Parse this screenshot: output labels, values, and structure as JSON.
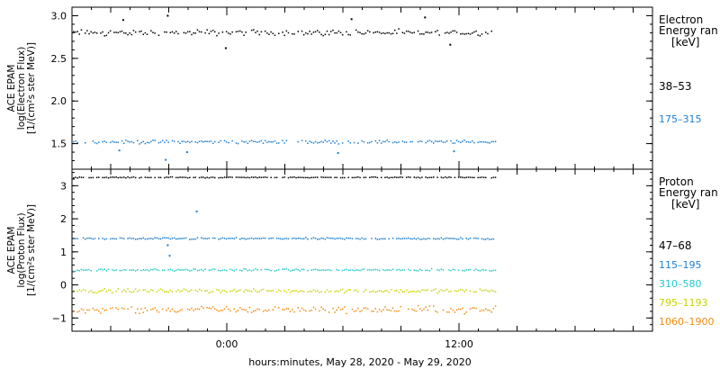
{
  "chart_data": [
    {
      "type": "scatter",
      "panel": "electron",
      "ylabel_lines": [
        "ACE EPAM",
        "log(Electron Flux)",
        "[1/(cm²s ster MeV)]"
      ],
      "ylim": [
        1.2,
        3.1
      ],
      "yticks": [
        1.5,
        2.0,
        2.5,
        3.0
      ],
      "ytick_labels": [
        "1.5",
        "2.0",
        "2.5",
        "3.0"
      ],
      "legend_title": [
        "Electron",
        "Energy ran",
        "[keV]"
      ],
      "series": [
        {
          "name": "38-53",
          "color": "#000000",
          "level": 2.8,
          "spread": 0.05,
          "outliers": [
            [
              -5.4,
              2.95
            ],
            [
              -3.1,
              3.0
            ],
            [
              -0.1,
              2.62
            ],
            [
              6.4,
              2.96
            ],
            [
              10.2,
              2.98
            ],
            [
              11.5,
              2.66
            ]
          ]
        },
        {
          "name": "175-315",
          "color": "#1f7fd0",
          "level": 1.52,
          "spread": 0.03,
          "outliers": [
            [
              -3.2,
              1.31
            ],
            [
              -5.6,
              1.42
            ],
            [
              -2.1,
              1.4
            ],
            [
              5.7,
              1.39
            ],
            [
              11.7,
              1.41
            ]
          ]
        }
      ]
    },
    {
      "type": "scatter",
      "panel": "proton",
      "ylabel_lines": [
        "ACE EPAM",
        "log(Proton Flux)",
        "[1/(cm²s ster MeV)]"
      ],
      "ylim": [
        -1.4,
        3.5
      ],
      "yticks": [
        -1,
        0,
        1,
        2,
        3
      ],
      "ytick_labels": [
        "−1",
        "0",
        "1",
        "2",
        "3"
      ],
      "legend_title": [
        "Proton",
        "Energy ran",
        "[keV]"
      ],
      "series": [
        {
          "name": "47-68",
          "color": "#000000",
          "level": 3.25,
          "spread": 0.02,
          "outliers": []
        },
        {
          "name": "115-195",
          "color": "#1f7fd0",
          "level": 1.4,
          "spread": 0.04,
          "outliers": [
            [
              -3.0,
              0.88
            ],
            [
              -1.6,
              2.22
            ],
            [
              -3.1,
              1.2
            ]
          ]
        },
        {
          "name": "310-580",
          "color": "#22c8c8",
          "level": 0.45,
          "spread": 0.05,
          "outliers": []
        },
        {
          "name": "795-1193",
          "color": "#c8d400",
          "level": -0.18,
          "spread": 0.08,
          "outliers": []
        },
        {
          "name": "1060-1900",
          "color": "#f08c10",
          "level": -0.75,
          "spread": 0.15,
          "outliers": []
        }
      ]
    }
  ],
  "x_axis": {
    "xlim": [
      -8,
      22
    ],
    "data_end": 13.9,
    "major_ticks": [
      0,
      12
    ],
    "major_labels": [
      "0:00",
      "12:00"
    ],
    "xlabel": "hours:minutes, May 28, 2020 - May 29, 2020"
  }
}
